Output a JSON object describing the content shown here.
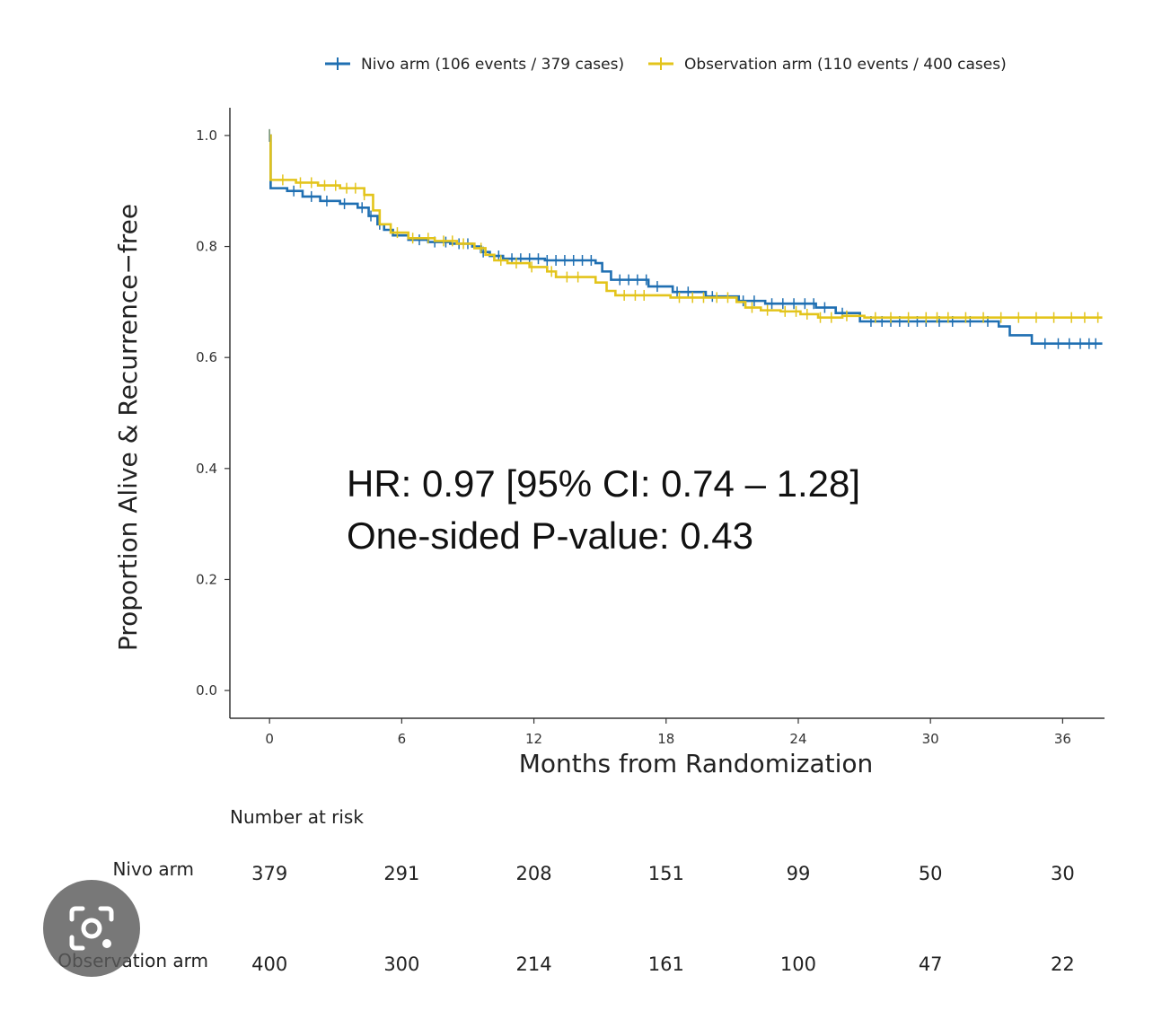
{
  "chart_data": {
    "type": "line",
    "xlabel": "Months from Randomization",
    "ylabel": "Proportion Alive & Recurrence−free",
    "xlim": [
      -1.8,
      37.9
    ],
    "ylim": [
      -0.05,
      1.05
    ],
    "x_ticks": [
      0,
      6,
      12,
      18,
      24,
      30,
      36
    ],
    "x_tick_labels": [
      "0",
      "6",
      "12",
      "18",
      "24",
      "30",
      "36"
    ],
    "y_ticks": [
      0.0,
      0.2,
      0.4,
      0.6,
      0.8,
      1.0
    ],
    "y_tick_labels": [
      "0.0",
      "0.2",
      "0.4",
      "0.6",
      "0.8",
      "1.0"
    ],
    "grid": false,
    "legend_position": "top",
    "series": [
      {
        "name": "Nivo arm (106 events / 379 cases)",
        "color": "#1f6fb2",
        "points": [
          [
            0,
            1.0
          ],
          [
            0.05,
            1.0
          ],
          [
            0.05,
            0.905
          ],
          [
            0.8,
            0.9
          ],
          [
            1.5,
            0.89
          ],
          [
            2.3,
            0.882
          ],
          [
            3.2,
            0.877
          ],
          [
            4.0,
            0.87
          ],
          [
            4.5,
            0.855
          ],
          [
            4.9,
            0.84
          ],
          [
            5.2,
            0.83
          ],
          [
            5.6,
            0.82
          ],
          [
            6.3,
            0.812
          ],
          [
            7.2,
            0.808
          ],
          [
            8.2,
            0.805
          ],
          [
            9.2,
            0.8
          ],
          [
            9.6,
            0.79
          ],
          [
            10.0,
            0.783
          ],
          [
            10.6,
            0.778
          ],
          [
            12.5,
            0.775
          ],
          [
            14.8,
            0.77
          ],
          [
            15.1,
            0.755
          ],
          [
            15.5,
            0.74
          ],
          [
            17.2,
            0.728
          ],
          [
            18.3,
            0.718
          ],
          [
            19.8,
            0.71
          ],
          [
            21.3,
            0.702
          ],
          [
            22.5,
            0.697
          ],
          [
            24.8,
            0.69
          ],
          [
            25.7,
            0.68
          ],
          [
            26.8,
            0.665
          ],
          [
            33.1,
            0.656
          ],
          [
            33.6,
            0.64
          ],
          [
            34.6,
            0.625
          ],
          [
            37.8,
            0.625
          ]
        ],
        "censor_x": [
          1.1,
          1.9,
          2.6,
          3.4,
          4.2,
          4.6,
          5.0,
          6.8,
          7.5,
          8.0,
          8.6,
          9.0,
          9.7,
          10.4,
          11.0,
          11.4,
          11.8,
          12.2,
          12.6,
          13.0,
          13.4,
          13.8,
          14.2,
          14.6,
          15.9,
          16.3,
          16.7,
          17.1,
          17.6,
          18.5,
          19.0,
          20.1,
          21.5,
          22.0,
          22.8,
          23.3,
          23.8,
          24.3,
          24.7,
          25.2,
          26.0,
          27.3,
          27.8,
          28.2,
          28.6,
          29.0,
          29.4,
          29.8,
          30.4,
          31.0,
          31.8,
          32.6,
          35.2,
          35.8,
          36.3,
          36.8,
          37.2,
          37.5
        ]
      },
      {
        "name": "Observation arm (110 events / 400 cases)",
        "color": "#e3c41b",
        "points": [
          [
            0,
            1.0
          ],
          [
            0.05,
            1.0
          ],
          [
            0.05,
            0.92
          ],
          [
            1.2,
            0.915
          ],
          [
            2.2,
            0.91
          ],
          [
            3.2,
            0.905
          ],
          [
            4.3,
            0.893
          ],
          [
            4.7,
            0.865
          ],
          [
            5.0,
            0.84
          ],
          [
            5.5,
            0.825
          ],
          [
            6.3,
            0.815
          ],
          [
            7.5,
            0.81
          ],
          [
            8.5,
            0.805
          ],
          [
            9.3,
            0.797
          ],
          [
            9.8,
            0.785
          ],
          [
            10.2,
            0.775
          ],
          [
            10.8,
            0.77
          ],
          [
            11.8,
            0.763
          ],
          [
            12.6,
            0.755
          ],
          [
            13.0,
            0.745
          ],
          [
            14.4,
            0.745
          ],
          [
            14.8,
            0.735
          ],
          [
            15.3,
            0.72
          ],
          [
            15.7,
            0.712
          ],
          [
            17.3,
            0.712
          ],
          [
            18.2,
            0.708
          ],
          [
            21.2,
            0.7
          ],
          [
            21.6,
            0.69
          ],
          [
            22.3,
            0.685
          ],
          [
            23.2,
            0.683
          ],
          [
            24.1,
            0.678
          ],
          [
            24.9,
            0.672
          ],
          [
            26.0,
            0.675
          ],
          [
            27.0,
            0.672
          ],
          [
            37.8,
            0.672
          ]
        ],
        "censor_x": [
          0.6,
          1.4,
          1.9,
          2.5,
          3.0,
          3.5,
          3.9,
          4.3,
          5.8,
          6.5,
          7.2,
          7.9,
          8.3,
          8.8,
          9.6,
          10.5,
          11.2,
          11.9,
          12.8,
          13.5,
          14.0,
          16.1,
          16.6,
          17.0,
          18.6,
          19.2,
          19.7,
          20.3,
          20.8,
          21.9,
          22.6,
          23.4,
          23.9,
          24.4,
          25.0,
          25.5,
          26.2,
          27.5,
          28.2,
          29.0,
          29.8,
          30.3,
          30.8,
          31.6,
          32.4,
          33.2,
          34.0,
          34.8,
          35.6,
          36.4,
          37.0,
          37.6
        ]
      }
    ],
    "annotations": [
      "HR: 0.97 [95% CI: 0.74 – 1.28]",
      "One-sided P-value: 0.43"
    ]
  },
  "risk_table": {
    "title": "Number at risk",
    "times": [
      0,
      6,
      12,
      18,
      24,
      30,
      36
    ],
    "rows": [
      {
        "arm": "Nivo arm",
        "values": [
          "379",
          "291",
          "208",
          "151",
          "99",
          "50",
          "30"
        ]
      },
      {
        "arm": "Observation arm",
        "values": [
          "400",
          "300",
          "214",
          "161",
          "100",
          "47",
          "22"
        ]
      }
    ]
  },
  "overlay": {
    "icon": "camera-lens-icon"
  }
}
